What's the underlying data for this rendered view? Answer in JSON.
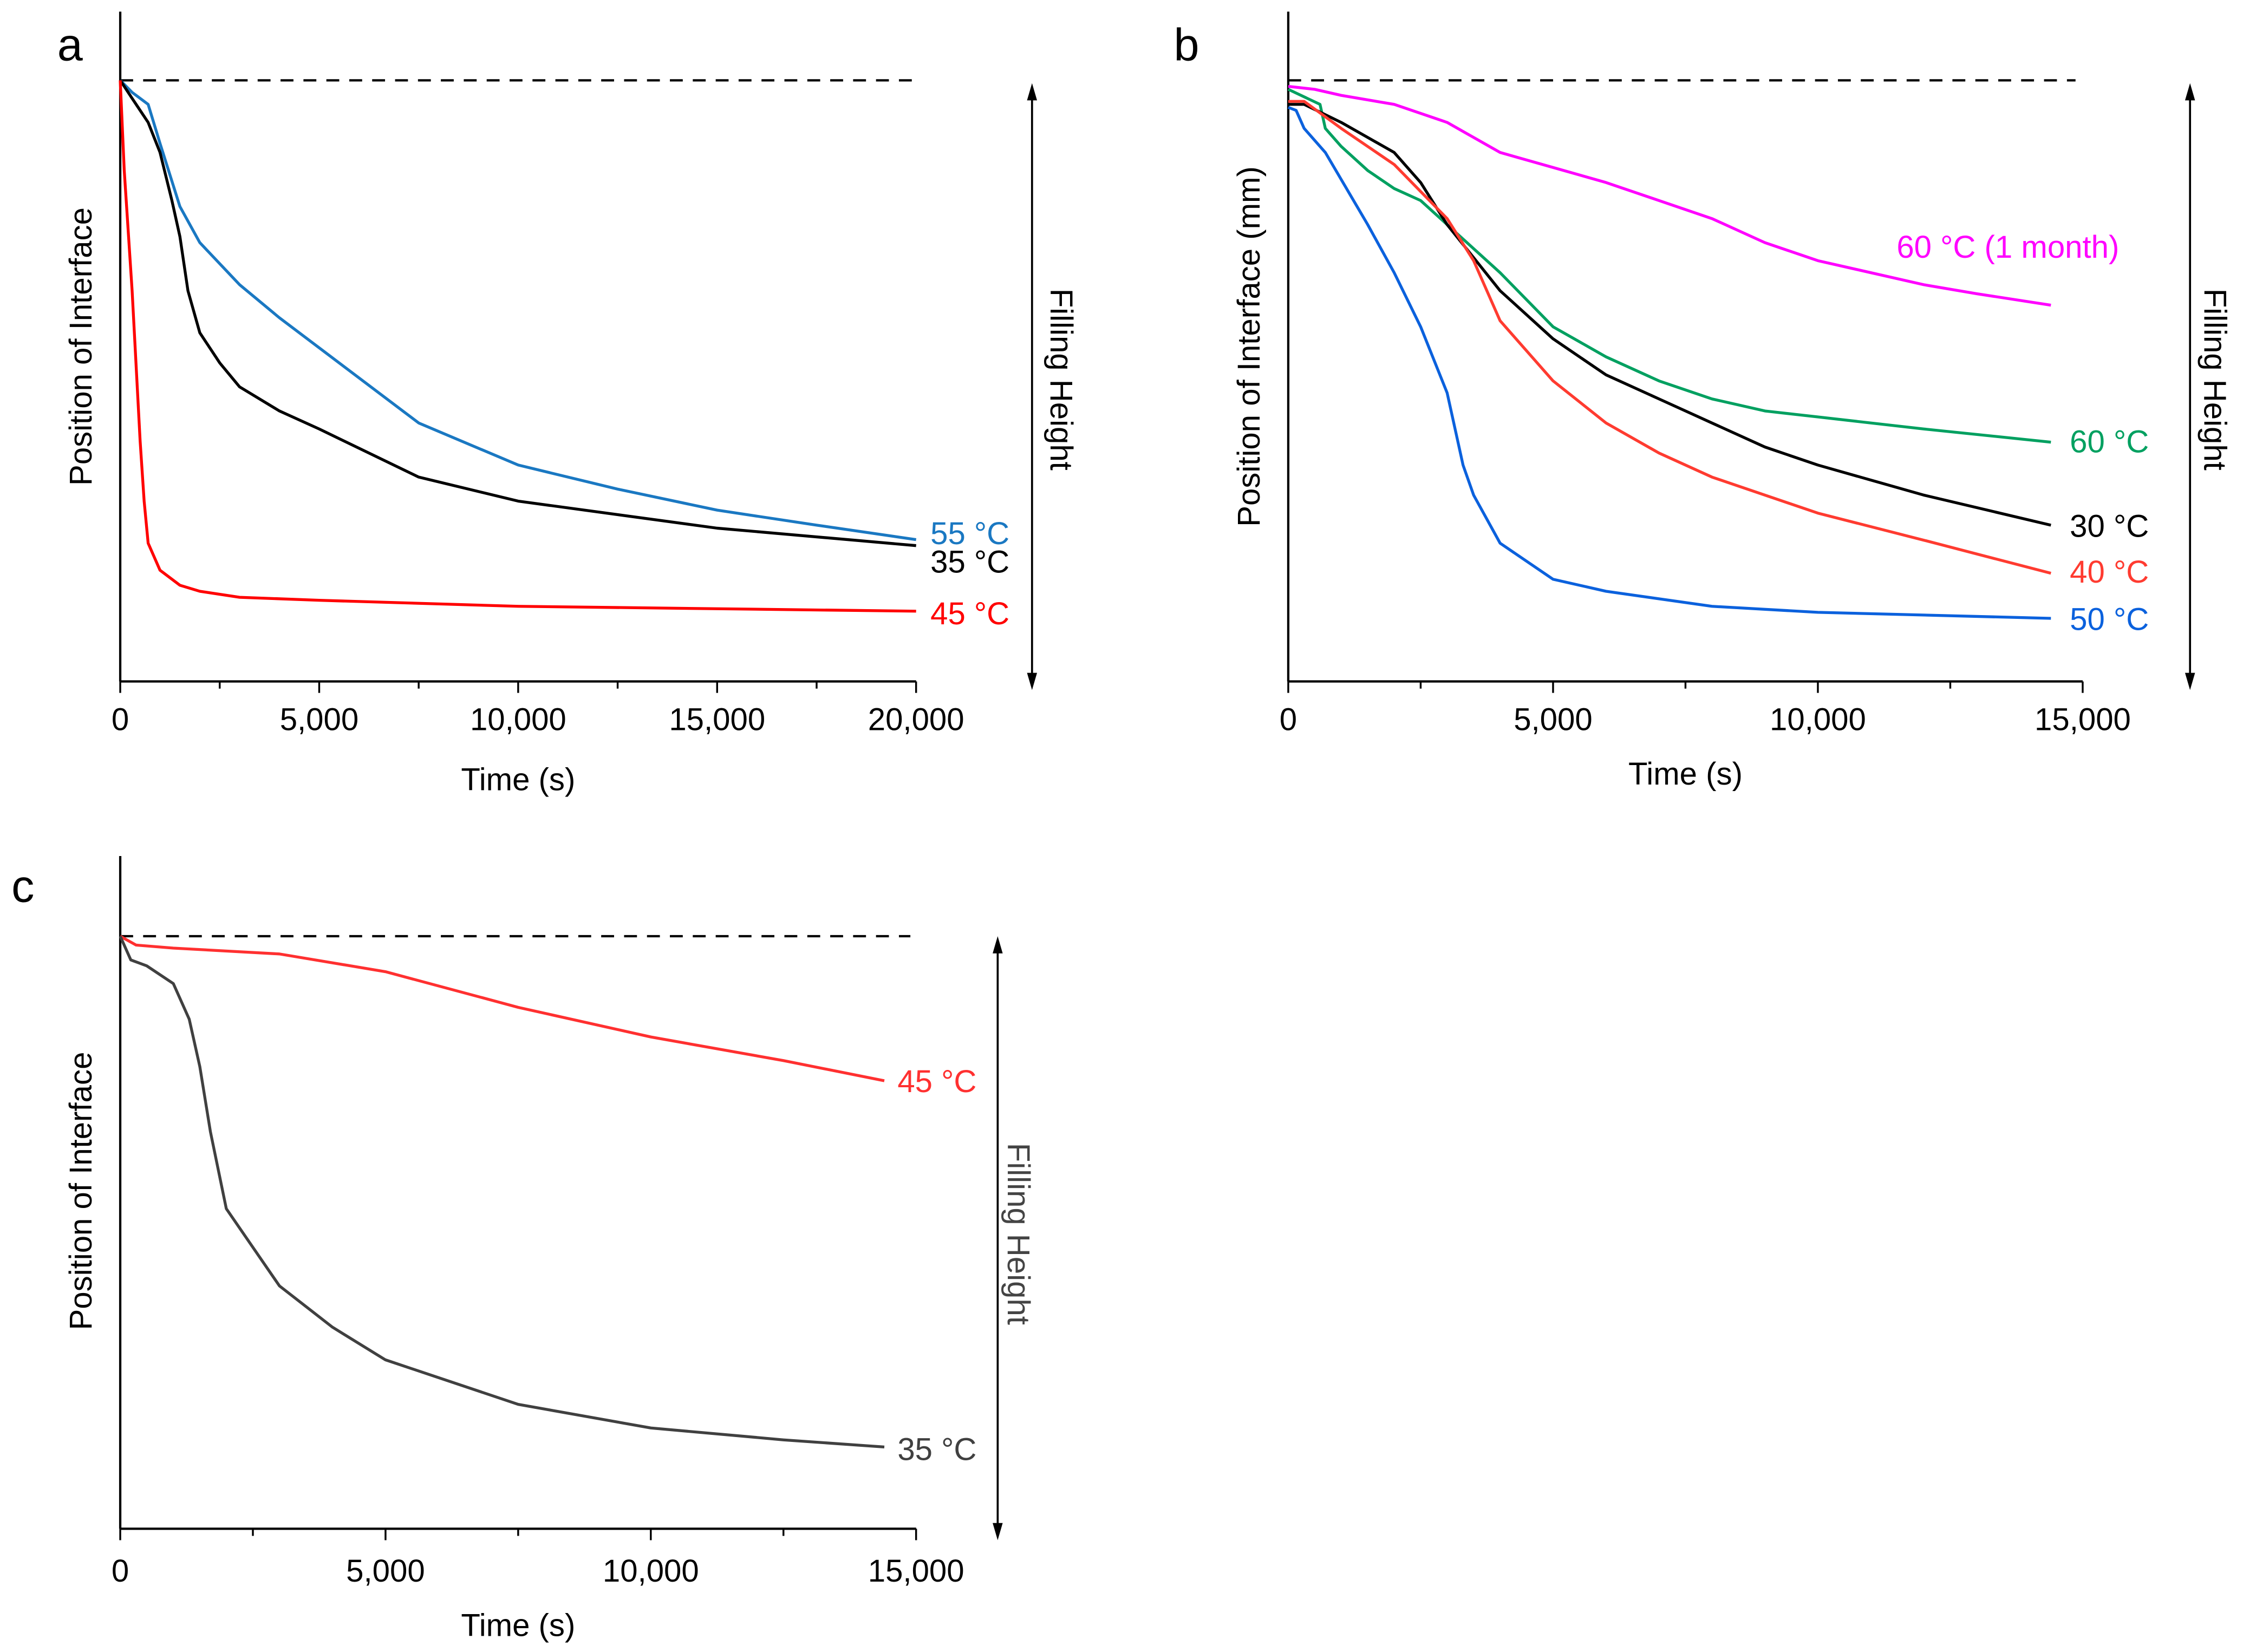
{
  "chart_data": [
    {
      "panel": "a",
      "type": "line",
      "xlabel": "Time (s)",
      "ylabel": "Position of Interface",
      "right_label": "Filling Height",
      "xlim": [
        0,
        20000
      ],
      "ylim": [
        0,
        1
      ],
      "y_units": "fraction of filling height (no numeric ticks shown)",
      "xticks": [
        0,
        5000,
        10000,
        15000,
        20000
      ],
      "xtick_labels": [
        "0",
        "5,000",
        "10,000",
        "15,000",
        "20,000"
      ],
      "reference_line": {
        "y": 1,
        "style": "dashed",
        "meaning": "filling height"
      },
      "series": [
        {
          "name": "55 °C",
          "color": "#1a78c2",
          "x": [
            0,
            300,
            700,
            1000,
            1500,
            2000,
            3000,
            4000,
            5000,
            7500,
            10000,
            12500,
            15000,
            17500,
            20000
          ],
          "y": [
            1,
            0.98,
            0.96,
            0.895,
            0.79,
            0.73,
            0.66,
            0.605,
            0.555,
            0.43,
            0.36,
            0.32,
            0.285,
            0.26,
            0.236
          ]
        },
        {
          "name": "35 °C",
          "color": "#000000",
          "x": [
            0,
            300,
            700,
            1000,
            1300,
            1500,
            1700,
            2000,
            2500,
            3000,
            4000,
            5000,
            7500,
            10000,
            15000,
            20000
          ],
          "y": [
            1,
            0.97,
            0.93,
            0.88,
            0.8,
            0.74,
            0.65,
            0.58,
            0.53,
            0.49,
            0.45,
            0.42,
            0.34,
            0.3,
            0.255,
            0.226
          ]
        },
        {
          "name": "45 °C",
          "color": "#ff0000",
          "x": [
            0,
            100,
            300,
            500,
            600,
            700,
            1000,
            1500,
            2000,
            3000,
            5000,
            10000,
            20000
          ],
          "y": [
            1,
            0.85,
            0.65,
            0.4,
            0.3,
            0.23,
            0.185,
            0.16,
            0.15,
            0.14,
            0.135,
            0.125,
            0.117
          ]
        }
      ]
    },
    {
      "panel": "b",
      "type": "line",
      "xlabel": "Time (s)",
      "ylabel": "Position of Interface (mm)",
      "right_label": "Filling Height",
      "xlim": [
        0,
        15000
      ],
      "ylim": [
        0,
        1
      ],
      "y_units": "fraction of filling height (no numeric ticks shown)",
      "xticks": [
        0,
        5000,
        10000,
        15000
      ],
      "xtick_labels": [
        "0",
        "5,000",
        "10,000",
        "15,000"
      ],
      "reference_line": {
        "y": 1,
        "style": "dashed",
        "meaning": "filling height"
      },
      "series": [
        {
          "name": "60 °C (1 month)",
          "color": "#ff00ff",
          "x": [
            0,
            500,
            1000,
            2000,
            3000,
            3400,
            4000,
            5000,
            6000,
            7000,
            8000,
            9000,
            10000,
            11000,
            12000,
            13000,
            14400
          ],
          "y": [
            0.99,
            0.985,
            0.975,
            0.96,
            0.93,
            0.91,
            0.88,
            0.855,
            0.83,
            0.8,
            0.77,
            0.73,
            0.7,
            0.68,
            0.66,
            0.645,
            0.626
          ]
        },
        {
          "name": "60 °C",
          "color": "#00a060",
          "x": [
            0,
            600,
            700,
            1000,
            1500,
            2000,
            2500,
            3000,
            4000,
            5000,
            6000,
            7000,
            8000,
            9000,
            10000,
            12000,
            14400
          ],
          "y": [
            0.985,
            0.96,
            0.92,
            0.89,
            0.85,
            0.82,
            0.8,
            0.76,
            0.68,
            0.59,
            0.54,
            0.5,
            0.47,
            0.45,
            0.44,
            0.42,
            0.398
          ]
        },
        {
          "name": "30 °C",
          "color": "#000000",
          "x": [
            0,
            300,
            1000,
            2000,
            2500,
            3000,
            4000,
            5000,
            6000,
            7000,
            8000,
            9000,
            10000,
            12000,
            14400
          ],
          "y": [
            0.96,
            0.96,
            0.93,
            0.88,
            0.83,
            0.76,
            0.65,
            0.57,
            0.51,
            0.47,
            0.43,
            0.39,
            0.36,
            0.31,
            0.26
          ]
        },
        {
          "name": "40 °C",
          "color": "#ff3b30",
          "x": [
            0,
            300,
            1000,
            2000,
            3000,
            3500,
            4000,
            5000,
            6000,
            7000,
            8000,
            10000,
            12000,
            14400
          ],
          "y": [
            0.965,
            0.965,
            0.92,
            0.86,
            0.77,
            0.7,
            0.6,
            0.5,
            0.43,
            0.38,
            0.34,
            0.28,
            0.235,
            0.18
          ]
        },
        {
          "name": "50 °C",
          "color": "#0b61dd",
          "x": [
            0,
            150,
            300,
            700,
            1500,
            2000,
            2500,
            3000,
            3300,
            3500,
            4000,
            5000,
            6000,
            8000,
            10000,
            14400
          ],
          "y": [
            0.955,
            0.95,
            0.92,
            0.88,
            0.76,
            0.68,
            0.59,
            0.48,
            0.36,
            0.31,
            0.23,
            0.17,
            0.15,
            0.125,
            0.115,
            0.105
          ]
        }
      ]
    },
    {
      "panel": "c",
      "type": "line",
      "xlabel": "Time (s)",
      "ylabel": "Position of Interface",
      "right_label": "Filling Height",
      "xlim": [
        0,
        15000
      ],
      "ylim": [
        0,
        1
      ],
      "y_units": "fraction of filling height (no numeric ticks shown)",
      "xticks": [
        0,
        5000,
        10000,
        15000
      ],
      "xtick_labels": [
        "0",
        "5,000",
        "10,000",
        "15,000"
      ],
      "reference_line": {
        "y": 1,
        "style": "dashed",
        "meaning": "filling height"
      },
      "series": [
        {
          "name": "45 °C",
          "color": "#ff3030",
          "x": [
            0,
            300,
            1000,
            3000,
            5000,
            7500,
            10000,
            12500,
            14400
          ],
          "y": [
            1,
            0.985,
            0.98,
            0.97,
            0.94,
            0.88,
            0.83,
            0.79,
            0.756
          ]
        },
        {
          "name": "35 °C",
          "color": "#404040",
          "x": [
            0,
            200,
            500,
            1000,
            1300,
            1500,
            1700,
            2000,
            3000,
            4000,
            5000,
            7500,
            10000,
            12500,
            14400
          ],
          "y": [
            1,
            0.96,
            0.95,
            0.92,
            0.86,
            0.78,
            0.67,
            0.54,
            0.41,
            0.34,
            0.285,
            0.21,
            0.17,
            0.15,
            0.138
          ]
        }
      ]
    }
  ]
}
